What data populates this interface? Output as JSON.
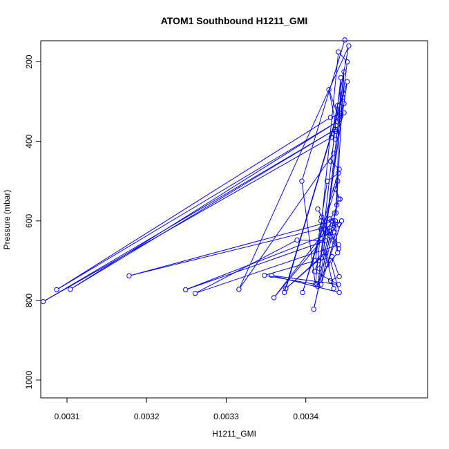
{
  "chart_data": {
    "type": "line",
    "title": "ATOM1 Southbound H1211_GMI",
    "xlabel": "H1211_GMI",
    "ylabel": "Pressure (mbar)",
    "xlim": [
      0.003067,
      0.003553
    ],
    "ylim": [
      1045,
      147
    ],
    "y_reversed": true,
    "x_ticks": [
      0.0031,
      0.0032,
      0.0033,
      0.0034
    ],
    "x_tick_labels": [
      "0.0031",
      "0.0032",
      "0.0033",
      "0.0034"
    ],
    "y_ticks": [
      200,
      400,
      600,
      800,
      1000
    ],
    "y_tick_labels": [
      "200",
      "400",
      "600",
      "800",
      "1000"
    ],
    "grid": false,
    "series": [
      {
        "color": "#0000ff",
        "marker": "open-circle",
        "points": [
          [
            0.003449,
            145
          ],
          [
            0.003395,
            500
          ],
          [
            0.003412,
            760
          ],
          [
            0.003441,
            175
          ],
          [
            0.003452,
            200
          ],
          [
            0.003422,
            680
          ],
          [
            0.003448,
            225
          ],
          [
            0.003438,
            580
          ],
          [
            0.003444,
            240
          ],
          [
            0.003417,
            720
          ],
          [
            0.003452,
            250
          ],
          [
            0.003373,
            780
          ],
          [
            0.003447,
            280
          ],
          [
            0.003375,
            770
          ],
          [
            0.003446,
            290
          ],
          [
            0.00344,
            310
          ],
          [
            0.003448,
            305
          ],
          [
            0.003444,
            330
          ],
          [
            0.003442,
            345
          ],
          [
            0.003429,
            270
          ],
          [
            0.003438,
            360
          ],
          [
            0.003437,
            375
          ],
          [
            0.003433,
            380
          ],
          [
            0.003437,
            395
          ],
          [
            0.003448,
            328
          ],
          [
            0.003431,
            340
          ],
          [
            0.003087,
            773
          ],
          [
            0.00344,
            350
          ],
          [
            0.003104,
            772
          ],
          [
            0.003437,
            370
          ],
          [
            0.00307,
            803
          ],
          [
            0.003432,
            390
          ],
          [
            0.003454,
            160
          ],
          [
            0.003316,
            772
          ],
          [
            0.003435,
            430
          ],
          [
            0.003431,
            450
          ],
          [
            0.003442,
            470
          ],
          [
            0.003396,
            780
          ],
          [
            0.00344,
            500
          ],
          [
            0.003437,
            520
          ],
          [
            0.003441,
            545
          ],
          [
            0.00341,
            822
          ],
          [
            0.003439,
            560
          ],
          [
            0.003436,
            580
          ],
          [
            0.00343,
            595
          ],
          [
            0.003442,
            608
          ],
          [
            0.003178,
            738
          ],
          [
            0.003434,
            600
          ],
          [
            0.00336,
            793
          ],
          [
            0.00343,
            625
          ],
          [
            0.003435,
            628
          ],
          [
            0.003249,
            773
          ],
          [
            0.003425,
            650
          ],
          [
            0.003389,
            648
          ],
          [
            0.003261,
            782
          ],
          [
            0.003441,
            660
          ],
          [
            0.003419,
            600
          ],
          [
            0.003412,
            700
          ],
          [
            0.003348,
            737
          ],
          [
            0.003414,
            760
          ],
          [
            0.003431,
            700
          ],
          [
            0.003442,
            780
          ],
          [
            0.003357,
            737
          ],
          [
            0.003441,
            760
          ],
          [
            0.003411,
            727
          ],
          [
            0.003416,
            700
          ],
          [
            0.003433,
            690
          ],
          [
            0.003442,
            740
          ],
          [
            0.003431,
            750
          ],
          [
            0.003435,
            770
          ],
          [
            0.003425,
            680
          ],
          [
            0.003375,
            770
          ],
          [
            0.003419,
            693
          ],
          [
            0.003415,
            765
          ],
          [
            0.003432,
            600
          ],
          [
            0.003439,
            620
          ],
          [
            0.003427,
            710
          ],
          [
            0.00344,
            680
          ],
          [
            0.003437,
            600
          ],
          [
            0.003419,
            760
          ],
          [
            0.003445,
            600
          ],
          [
            0.003425,
            630
          ],
          [
            0.003433,
            640
          ],
          [
            0.003419,
            620
          ],
          [
            0.003441,
            670
          ],
          [
            0.003415,
            570
          ],
          [
            0.00342,
            590
          ],
          [
            0.003427,
            500
          ],
          [
            0.003441,
            480
          ],
          [
            0.003437,
            520
          ],
          [
            0.003443,
            545
          ]
        ]
      }
    ]
  }
}
